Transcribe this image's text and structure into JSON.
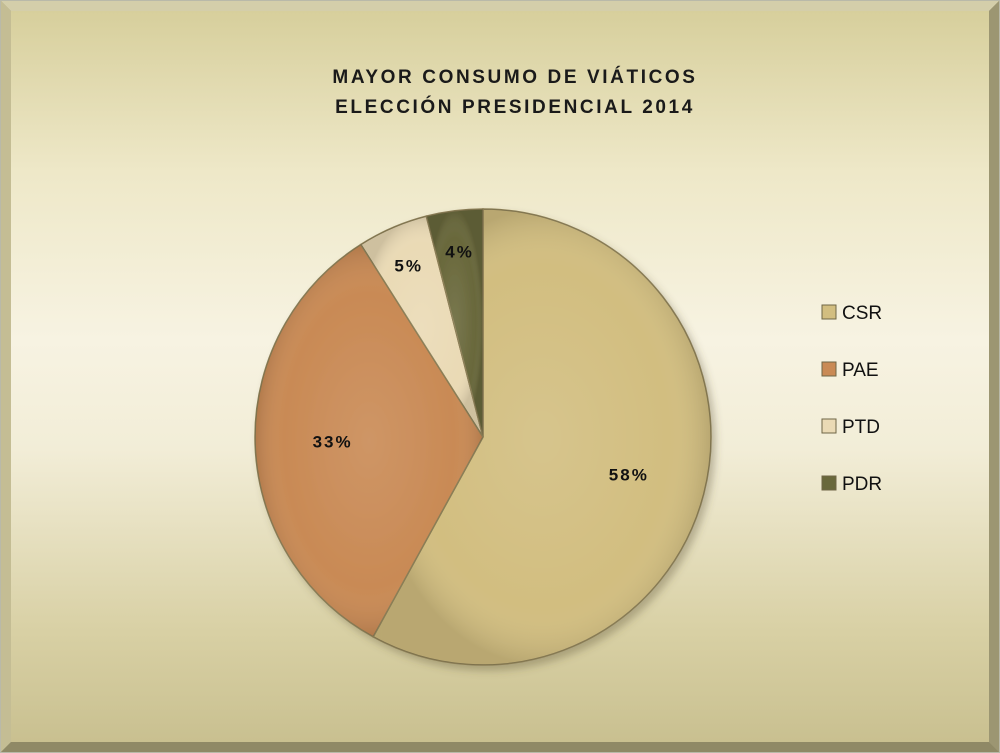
{
  "chart_data": {
    "type": "pie",
    "title_lines": [
      "MAYOR CONSUMO DE VIÁTICOS",
      "ELECCIÓN PRESIDENCIAL 2014"
    ],
    "categories": [
      "CSR",
      "PAE",
      "PTD",
      "PDR"
    ],
    "values": [
      58,
      33,
      5,
      4
    ],
    "labels": [
      "58%",
      "33%",
      "5%",
      "4%"
    ],
    "colors": [
      "#d2be80",
      "#c98a55",
      "#eadab5",
      "#69683b"
    ],
    "legend_position": "right"
  }
}
